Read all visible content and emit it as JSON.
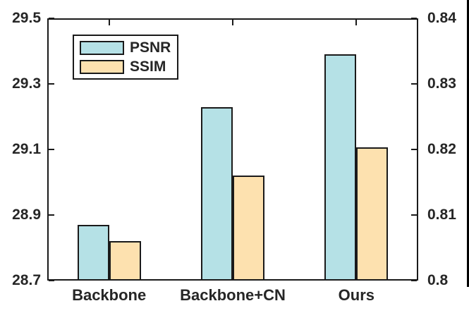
{
  "figure": {
    "background": "#ffffff",
    "axis_color": "#1a1a1a",
    "text_color": "#262626",
    "border_artifact_color": "#000000"
  },
  "legend": {
    "position": "upper-left",
    "entries": [
      {
        "label": "PSNR",
        "color": "#b5e1e6"
      },
      {
        "label": "SSIM",
        "color": "#fde1af"
      }
    ]
  },
  "chart_data": {
    "type": "bar",
    "categories": [
      "Backbone",
      "Backbone+CN",
      "Ours"
    ],
    "series": [
      {
        "name": "PSNR",
        "axis": "left",
        "color": "#b5e1e6",
        "values": [
          28.87,
          29.23,
          29.39
        ]
      },
      {
        "name": "SSIM",
        "axis": "right",
        "color": "#fde1af",
        "values": [
          0.806,
          0.816,
          0.8203
        ]
      }
    ],
    "left_axis": {
      "min": 28.7,
      "max": 29.5,
      "ticks": [
        "28.7",
        "28.9",
        "29.1",
        "29.3",
        "29.5"
      ]
    },
    "right_axis": {
      "min": 0.8,
      "max": 0.84,
      "ticks": [
        "0.8",
        "0.81",
        "0.82",
        "0.83",
        "0.84"
      ]
    },
    "grid": false,
    "legend_position": "upper-left",
    "title": "",
    "xlabel": "",
    "ylabel_left": "",
    "ylabel_right": ""
  }
}
